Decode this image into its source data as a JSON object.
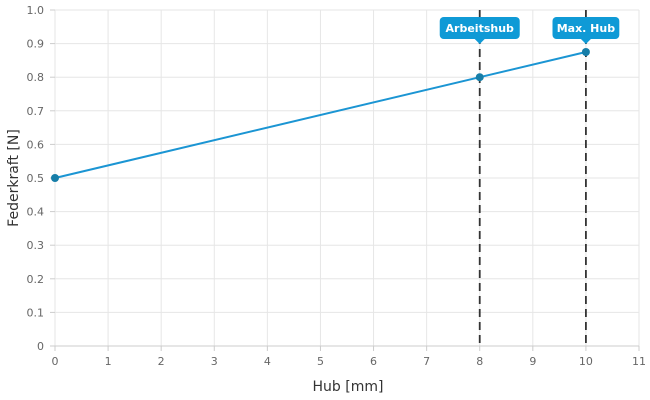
{
  "chart_data": {
    "type": "line",
    "title": "",
    "xlabel": "Hub [mm]",
    "ylabel": "Federkraft [N]",
    "xlim": [
      0,
      11
    ],
    "ylim": [
      0,
      1.0
    ],
    "x_ticks": [
      0,
      1,
      2,
      3,
      4,
      5,
      6,
      7,
      8,
      9,
      10,
      11
    ],
    "y_ticks": [
      0,
      0.1,
      0.2,
      0.3,
      0.4,
      0.5,
      0.6,
      0.7,
      0.8,
      0.9,
      1.0
    ],
    "y_tick_labels": [
      "0",
      "0.1",
      "0.2",
      "0.3",
      "0.4",
      "0.5",
      "0.6",
      "0.7",
      "0.8",
      "0.9",
      "1.0"
    ],
    "grid": true,
    "series": [
      {
        "x": [
          0,
          8,
          10
        ],
        "y": [
          0.5,
          0.8,
          0.875
        ],
        "color": "#1b95d3",
        "point_color": "#177ea8"
      }
    ],
    "vertical_markers": [
      {
        "x": 8,
        "label": "Arbeitshub",
        "style": "dashed"
      },
      {
        "x": 10,
        "label": "Max. Hub",
        "style": "dashed"
      }
    ],
    "colors": {
      "line": "#1b95d3",
      "marker_badge": "#0f9ad6",
      "marker_line": "#333333",
      "grid": "#e6e6e6",
      "axis": "#cccccc"
    }
  }
}
